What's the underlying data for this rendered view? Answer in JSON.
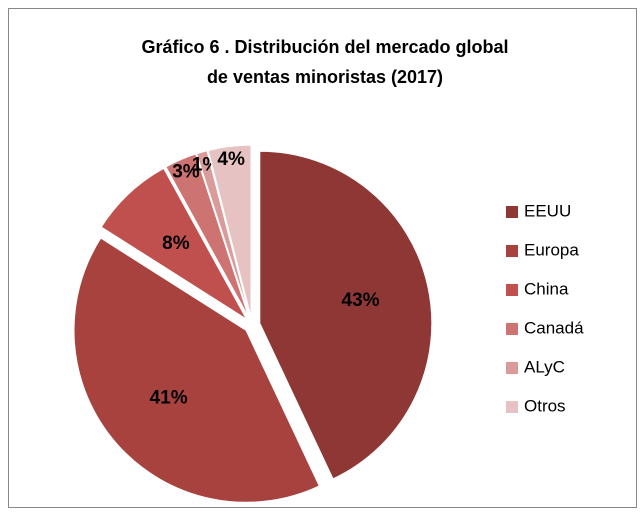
{
  "chart_data": {
    "type": "pie",
    "title": [
      "Gráfico 6 . Distribución del mercado global",
      "de ventas minoristas (2017)"
    ],
    "categories": [
      "EEUU",
      "Europa",
      "China",
      "Canadá",
      "ALyC",
      "Otros"
    ],
    "values": [
      43,
      41,
      8,
      3,
      1,
      4
    ],
    "value_labels": [
      "43%",
      "41%",
      "8%",
      "3%",
      "1%",
      "4%"
    ],
    "colors": [
      "#8e3735",
      "#a8423f",
      "#c0504d",
      "#cd7371",
      "#d99c9b",
      "#e6c3c2"
    ],
    "legend": "right"
  }
}
